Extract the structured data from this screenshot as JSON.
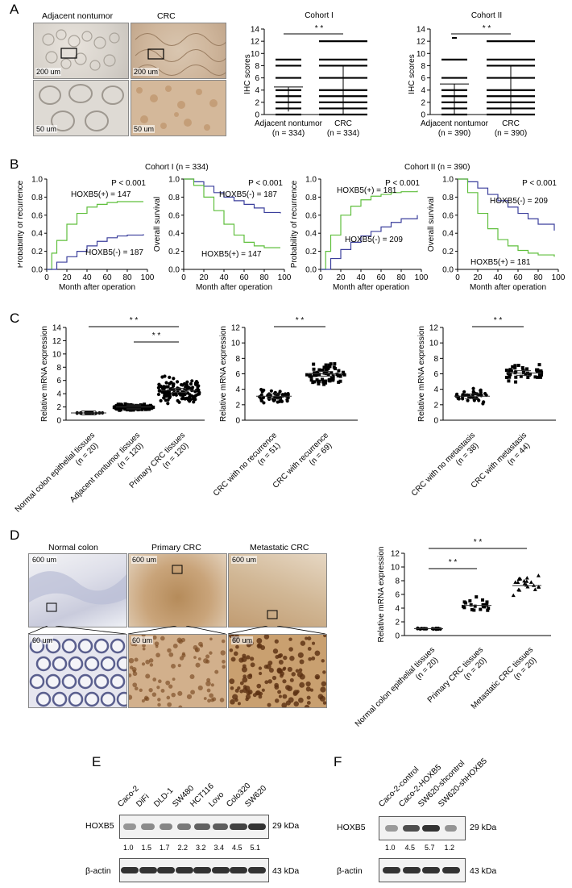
{
  "panels": {
    "A": {
      "letter": "A",
      "img_labels": [
        "Adjacent nontumor",
        "CRC"
      ],
      "scale_top": "200 um",
      "scale_bottom": "50 um",
      "cohort1_title": "Cohort I",
      "cohort2_title": "Cohort II",
      "ylabel": "IHC scores",
      "sig": "* *",
      "cohort1_groups": [
        "Adjacent nontumor",
        "CRC"
      ],
      "cohort1_n": [
        "(n = 334)",
        "(n = 334)"
      ],
      "cohort2_groups": [
        "Adjacent nontumor",
        "CRC"
      ],
      "cohort2_n": [
        "(n = 390)",
        "(n = 390)"
      ]
    },
    "B": {
      "letter": "B",
      "cohort1_title": "Cohort I (n = 334)",
      "cohort2_title": "Cohort II (n = 390)",
      "p": "P < 0.001",
      "xlabel": "Month after operation",
      "ylabel_rec": "Probability of recurrence",
      "ylabel_os": "Overall survival",
      "c1_rec_pos": "HOXB5(+) = 147",
      "c1_rec_neg": "HOXB5(-) = 187",
      "c1_os_neg": "HOXB5(-) = 187",
      "c1_os_pos": "HOXB5(+) = 147",
      "c2_rec_pos": "HOXB5(+) = 181",
      "c2_rec_neg": "HOXB5(-) = 209",
      "c2_os_neg": "HOXB5(-) = 209",
      "c2_os_pos": "HOXB5(+) = 181"
    },
    "C": {
      "letter": "C",
      "ylabel": "Relative mRNA expression",
      "sig": "* *",
      "g1": [
        "Normal colon epithelial tissues",
        "(n = 20)"
      ],
      "g2": [
        "Adjacent nontumor tissues",
        "(n = 120)"
      ],
      "g3": [
        "Primary CRC tissues",
        "(n = 120)"
      ],
      "g4": [
        "CRC with no recurrence",
        "(n = 51)"
      ],
      "g5": [
        "CRC with recurrence",
        "(n = 69)"
      ],
      "g6": [
        "CRC with no metastasis",
        "(n = 38)"
      ],
      "g7": [
        "CRC with metastasis",
        "(n = 44)"
      ]
    },
    "D": {
      "letter": "D",
      "img_labels": [
        "Normal colon",
        "Primary CRC",
        "Metastatic CRC"
      ],
      "scale_top": "600 um",
      "scale_bottom": "60 um",
      "ylabel": "Relative mRNA expression",
      "sig": "* *",
      "g1": [
        "Normal colon epithelial tissues",
        "(n = 20)"
      ],
      "g2": [
        "Primary CRC tissues",
        "(n = 20)"
      ],
      "g3": [
        "Metastatic CRC tissues",
        "(n = 20)"
      ]
    },
    "E": {
      "letter": "E",
      "lanes": [
        "Caco-2",
        "DiFi",
        "DLD-1",
        "SW480",
        "HCT116",
        "Lovo",
        "Colo320",
        "SW620"
      ],
      "row1": "HOXB5",
      "row2": "β-actin",
      "kda1": "29 kDa",
      "kda2": "43 kDa",
      "quant": [
        "1.0",
        "1.5",
        "1.7",
        "2.2",
        "3.2",
        "3.4",
        "4.5",
        "5.1"
      ]
    },
    "F": {
      "letter": "F",
      "lanes": [
        "Caco-2-control",
        "Caco-2-HOXB5",
        "SW620-shcontrol",
        "SW620-shHOXB5"
      ],
      "row1": "HOXB5",
      "row2": "β-actin",
      "kda1": "29 kDa",
      "kda2": "43 kDa",
      "quant": [
        "1.0",
        "4.5",
        "5.7",
        "1.2"
      ]
    }
  },
  "chart_data": [
    {
      "type": "scatter",
      "panel": "A-Cohort I",
      "categories": [
        "Adjacent nontumor",
        "CRC"
      ],
      "ylabel": "IHC scores",
      "ylim": [
        0,
        14
      ],
      "score_levels": [
        0,
        1,
        2,
        3,
        4,
        6,
        8,
        9,
        12
      ],
      "mean_sd": [
        [
          2.5,
          2.0
        ],
        [
          4.0,
          4.0
        ]
      ]
    },
    {
      "type": "scatter",
      "panel": "A-Cohort II",
      "categories": [
        "Adjacent nontumor",
        "CRC"
      ],
      "ylabel": "IHC scores",
      "ylim": [
        0,
        14
      ],
      "score_levels": [
        0,
        1,
        2,
        3,
        4,
        6,
        8,
        9,
        12
      ],
      "mean_sd": [
        [
          2.5,
          2.5
        ],
        [
          4.0,
          4.0
        ]
      ]
    },
    {
      "type": "line",
      "panel": "B-C1-recurrence",
      "xlabel": "Month after operation",
      "ylabel": "Probability of recurrence",
      "xlim": [
        0,
        100
      ],
      "ylim": [
        0,
        1
      ],
      "series": [
        {
          "name": "HOXB5(+) = 147",
          "x": [
            0,
            5,
            10,
            20,
            30,
            40,
            50,
            60,
            70,
            80,
            96
          ],
          "y": [
            0,
            0.18,
            0.32,
            0.5,
            0.62,
            0.69,
            0.72,
            0.74,
            0.75,
            0.75,
            0.75
          ]
        },
        {
          "name": "HOXB5(-) = 187",
          "x": [
            0,
            10,
            20,
            30,
            40,
            50,
            60,
            70,
            80,
            96
          ],
          "y": [
            0,
            0.08,
            0.14,
            0.2,
            0.26,
            0.31,
            0.35,
            0.37,
            0.38,
            0.39
          ]
        }
      ]
    },
    {
      "type": "line",
      "panel": "B-C1-OS",
      "xlabel": "Month after operation",
      "ylabel": "Overall survival",
      "xlim": [
        0,
        100
      ],
      "ylim": [
        0,
        1
      ],
      "series": [
        {
          "name": "HOXB5(-) = 187",
          "x": [
            0,
            10,
            20,
            30,
            40,
            50,
            60,
            70,
            80,
            96
          ],
          "y": [
            1,
            0.97,
            0.92,
            0.85,
            0.8,
            0.76,
            0.72,
            0.68,
            0.63,
            0.62
          ]
        },
        {
          "name": "HOXB5(+) = 147",
          "x": [
            0,
            10,
            20,
            30,
            40,
            50,
            60,
            70,
            80,
            96
          ],
          "y": [
            1,
            0.93,
            0.8,
            0.65,
            0.5,
            0.38,
            0.3,
            0.26,
            0.24,
            0.24
          ]
        }
      ]
    },
    {
      "type": "line",
      "panel": "B-C2-recurrence",
      "xlabel": "Month after operation",
      "ylabel": "Probability of recurrence",
      "xlim": [
        0,
        100
      ],
      "ylim": [
        0,
        1
      ],
      "series": [
        {
          "name": "HOXB5(+) = 181",
          "x": [
            0,
            5,
            10,
            20,
            30,
            40,
            50,
            60,
            70,
            80,
            96
          ],
          "y": [
            0,
            0.2,
            0.38,
            0.6,
            0.7,
            0.77,
            0.81,
            0.83,
            0.85,
            0.86,
            0.87
          ]
        },
        {
          "name": "HOXB5(-) = 209",
          "x": [
            0,
            10,
            20,
            30,
            40,
            50,
            60,
            70,
            80,
            96
          ],
          "y": [
            0,
            0.12,
            0.22,
            0.3,
            0.37,
            0.42,
            0.47,
            0.52,
            0.56,
            0.6
          ]
        }
      ]
    },
    {
      "type": "line",
      "panel": "B-C2-OS",
      "xlabel": "Month after operation",
      "ylabel": "Overall survival",
      "xlim": [
        0,
        100
      ],
      "ylim": [
        0,
        1
      ],
      "series": [
        {
          "name": "HOXB5(-) = 209",
          "x": [
            0,
            10,
            20,
            30,
            40,
            50,
            60,
            70,
            80,
            96
          ],
          "y": [
            1,
            0.97,
            0.9,
            0.83,
            0.76,
            0.69,
            0.62,
            0.56,
            0.5,
            0.43
          ]
        },
        {
          "name": "HOXB5(+) = 181",
          "x": [
            0,
            10,
            20,
            30,
            40,
            50,
            60,
            70,
            80,
            96
          ],
          "y": [
            1,
            0.85,
            0.62,
            0.45,
            0.33,
            0.26,
            0.21,
            0.18,
            0.16,
            0.14
          ]
        }
      ]
    },
    {
      "type": "scatter",
      "panel": "C-left",
      "categories": [
        "Normal colon epithelial tissues",
        "Adjacent nontumor tissues",
        "Primary CRC tissues"
      ],
      "ylabel": "Relative mRNA expression",
      "ylim": [
        0,
        14
      ],
      "means": [
        1.1,
        2.0,
        4.5
      ]
    },
    {
      "type": "scatter",
      "panel": "C-middle",
      "categories": [
        "CRC with no recurrence",
        "CRC with recurrence"
      ],
      "ylabel": "Relative mRNA expression",
      "ylim": [
        0,
        12
      ],
      "means": [
        3.1,
        6.0
      ]
    },
    {
      "type": "scatter",
      "panel": "C-right",
      "categories": [
        "CRC with no metastasis",
        "CRC with metastasis"
      ],
      "ylabel": "Relative mRNA expression",
      "ylim": [
        0,
        12
      ],
      "means": [
        3.1,
        6.1
      ]
    },
    {
      "type": "scatter",
      "panel": "D",
      "categories": [
        "Normal colon epithelial tissues",
        "Primary CRC tissues",
        "Metastatic CRC tissues"
      ],
      "ylabel": "Relative mRNA expression",
      "ylim": [
        0,
        12
      ],
      "means": [
        1.0,
        4.4,
        7.3
      ]
    }
  ]
}
